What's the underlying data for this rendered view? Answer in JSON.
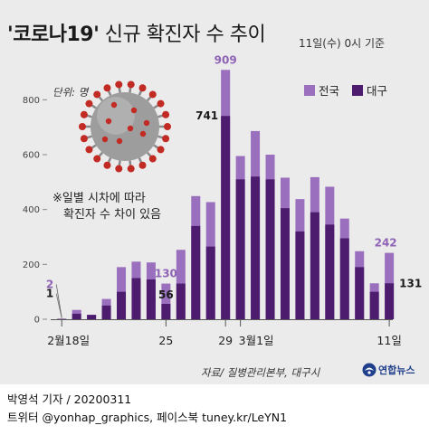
{
  "title": {
    "quoted": "'코로나19'",
    "rest": " 신규 확진자 수 추이"
  },
  "date_note": "11일(수) 0시 기준",
  "unit_label": "단위: 명",
  "note": {
    "line1": "※일별 시차에 따라",
    "line2": "확진자 수 차이 있음"
  },
  "source": "자료/ 질병관리본부, 대구시",
  "logo": {
    "text": "연합뉴스"
  },
  "footer": {
    "line1": "박영석 기자 / 20200311",
    "line2": "트위터 @yonhap_graphics, 페이스북 tuney.kr/LeYN1"
  },
  "colors": {
    "national": "#9a6fbe",
    "daegu": "#4d1c6e",
    "panel": "#ebebeb",
    "virus": "virus-icon"
  },
  "chart_data": {
    "type": "bar",
    "ylim": [
      0,
      900
    ],
    "yticks": [
      0,
      200,
      400,
      600,
      800
    ],
    "grid": false,
    "legend": "top-right",
    "x": [
      "2/18",
      "2/19",
      "2/20",
      "2/21",
      "2/22",
      "2/23",
      "2/24",
      "2/25",
      "2/26",
      "2/27",
      "2/28",
      "2/29",
      "3/1",
      "3/2",
      "3/3",
      "3/4",
      "3/5",
      "3/6",
      "3/7",
      "3/8",
      "3/9",
      "3/10",
      "3/11"
    ],
    "x_tick_labels": [
      {
        "index": 0,
        "label": "2월18일"
      },
      {
        "index": 7,
        "label": "25"
      },
      {
        "index": 11,
        "label": "29"
      },
      {
        "index": 12,
        "label": "3월1일"
      },
      {
        "index": 22,
        "label": "11일"
      }
    ],
    "series": [
      {
        "name": "전국",
        "values": [
          2,
          34,
          16,
          74,
          190,
          210,
          207,
          130,
          253,
          449,
          427,
          909,
          595,
          686,
          600,
          516,
          438,
          518,
          483,
          367,
          248,
          131,
          242
        ]
      },
      {
        "name": "대구",
        "values": [
          1,
          20,
          16,
          50,
          100,
          150,
          145,
          56,
          130,
          340,
          265,
          741,
          510,
          520,
          510,
          405,
          320,
          390,
          345,
          295,
          190,
          100,
          131
        ]
      }
    ],
    "data_labels": [
      {
        "series": "전국",
        "index": 0,
        "label": "2"
      },
      {
        "series": "대구",
        "index": 0,
        "label": "1"
      },
      {
        "series": "전국",
        "index": 7,
        "label": "130"
      },
      {
        "series": "대구",
        "index": 7,
        "label": "56"
      },
      {
        "series": "전국",
        "index": 11,
        "label": "909"
      },
      {
        "series": "대구",
        "index": 11,
        "label": "741"
      },
      {
        "series": "전국",
        "index": 22,
        "label": "242"
      },
      {
        "series": "대구",
        "index": 22,
        "label": "131"
      }
    ]
  }
}
